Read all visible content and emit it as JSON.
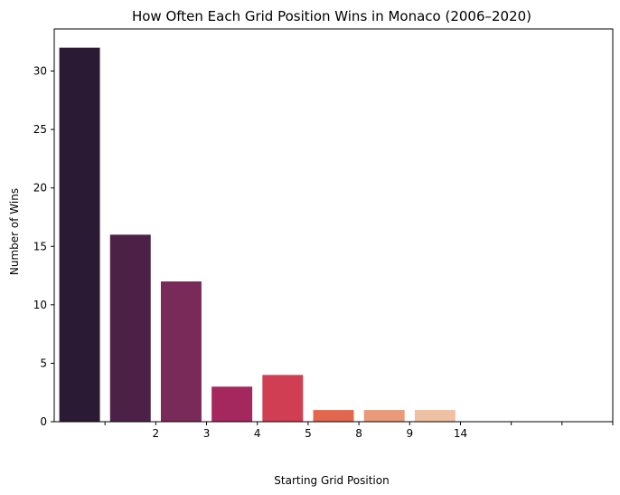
{
  "chart_data": {
    "type": "bar",
    "title": "How Often Each Grid Position Wins in Monaco (2006–2020)",
    "xlabel": "Starting Grid Position",
    "ylabel": "Number of Wins",
    "ylim": [
      0,
      33.6
    ],
    "yticks": [
      0,
      5,
      10,
      15,
      20,
      25,
      30
    ],
    "grid": false,
    "bars": [
      {
        "value": 32,
        "color": "#2b1a33"
      },
      {
        "value": 16,
        "color": "#4d2147"
      },
      {
        "value": 12,
        "color": "#7a2a58"
      },
      {
        "value": 3,
        "color": "#a4275e"
      },
      {
        "value": 4,
        "color": "#cf3e52"
      },
      {
        "value": 1,
        "color": "#e1684e"
      },
      {
        "value": 1,
        "color": "#e99a78"
      },
      {
        "value": 1,
        "color": "#f0c0a4"
      }
    ],
    "xtick_labels": [
      "",
      "2",
      "3",
      "4",
      "5",
      "8",
      "9",
      "14",
      "",
      "",
      ""
    ]
  }
}
